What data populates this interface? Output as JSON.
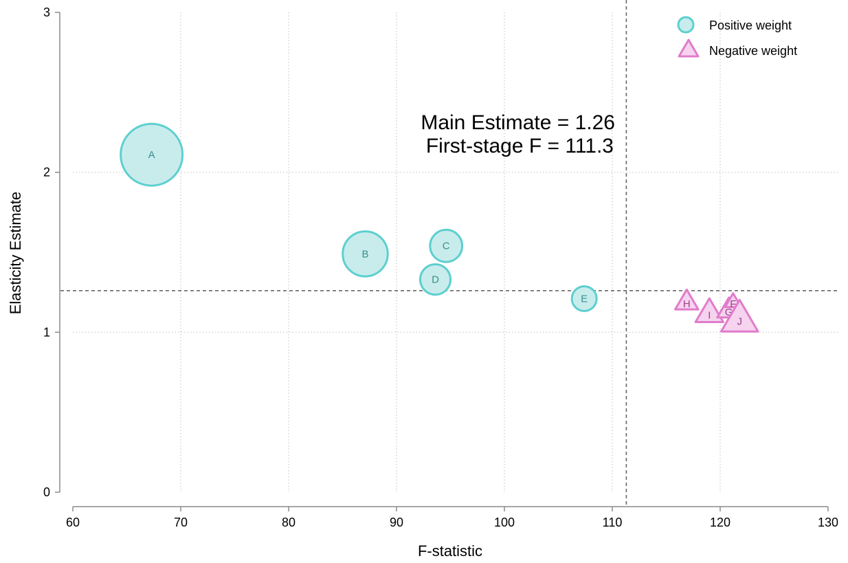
{
  "chart_data": {
    "type": "scatter",
    "title": "",
    "xlabel": "F-statistic",
    "ylabel": "Elasticity Estimate",
    "xlim": [
      60,
      130
    ],
    "ylim": [
      0,
      3
    ],
    "x_ticks": [
      "60",
      "70",
      "80",
      "90",
      "100",
      "110",
      "120",
      "130"
    ],
    "y_ticks": [
      "0",
      "1",
      "2",
      "3"
    ],
    "grid": true,
    "legend_placement": "top-right",
    "series": [
      {
        "name": "Positive weight",
        "marker": "circle",
        "color": "#5ecfcf",
        "fill": "#c8ecec",
        "points": [
          {
            "label": "A",
            "x": 67.3,
            "y": 2.11,
            "weight": 1.0
          },
          {
            "label": "B",
            "x": 87.1,
            "y": 1.49,
            "weight": 0.53
          },
          {
            "label": "C",
            "x": 94.6,
            "y": 1.54,
            "weight": 0.27
          },
          {
            "label": "D",
            "x": 93.6,
            "y": 1.33,
            "weight": 0.24
          },
          {
            "label": "E",
            "x": 107.4,
            "y": 1.21,
            "weight": 0.085
          }
        ]
      },
      {
        "name": "Negative weight",
        "marker": "triangle",
        "color": "#e07ccb",
        "fill": "#f6d3ee",
        "points": [
          {
            "label": "H",
            "x": 116.9,
            "y": 1.19,
            "weight": 1.0
          },
          {
            "label": "I",
            "x": 119.0,
            "y": 1.12,
            "weight": 1.2
          },
          {
            "label": "G",
            "x": 120.8,
            "y": 1.14,
            "weight": 1.0
          },
          {
            "label": "F",
            "x": 121.2,
            "y": 1.19,
            "weight": 0.7
          },
          {
            "label": "J",
            "x": 121.8,
            "y": 1.08,
            "weight": 1.6
          }
        ]
      }
    ],
    "reference_lines": {
      "vertical_x": 111.3,
      "horizontal_y": 1.26
    },
    "annotation": [
      "Main Estimate = 1.26",
      "First-stage F = 111.3"
    ]
  }
}
